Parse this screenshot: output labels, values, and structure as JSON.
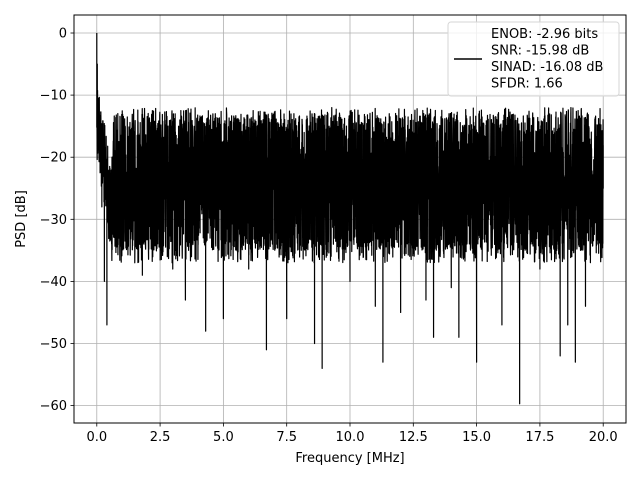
{
  "chart_data": {
    "type": "line",
    "xlabel": "Frequency [MHz]",
    "ylabel": "PSD [dB]",
    "xlim": [
      -0.9,
      20.9
    ],
    "ylim": [
      -62.8,
      2.9
    ],
    "xticks": [
      0.0,
      2.5,
      5.0,
      7.5,
      10.0,
      12.5,
      15.0,
      17.5,
      20.0
    ],
    "xtick_labels": [
      "0.0",
      "2.5",
      "5.0",
      "7.5",
      "10.0",
      "12.5",
      "15.0",
      "17.5",
      "20.0"
    ],
    "yticks": [
      0,
      -10,
      -20,
      -30,
      -40,
      -50,
      -60
    ],
    "ytick_labels": [
      "0",
      "−10",
      "−20",
      "−30",
      "−40",
      "−50",
      "−60"
    ],
    "grid": true,
    "legend_position": "top-right",
    "series": [
      {
        "name": "ENOB: -2.96 bits\nSNR: -15.98 dB\nSINAD: -16.08 dB\nSFDR: 1.66",
        "color": "#000000",
        "noise_floor_db": -24,
        "noise_upper_db": -12,
        "noise_lower_db": -37,
        "x": [
          0.0,
          0.02,
          0.05,
          0.1,
          0.15,
          0.2,
          0.3,
          0.4,
          0.5,
          0.6,
          1.0,
          1.5,
          1.8,
          2.0,
          2.5,
          3.0,
          3.5,
          4.0,
          4.3,
          4.6,
          5.0,
          5.5,
          6.0,
          6.5,
          6.7,
          7.0,
          7.5,
          8.0,
          8.6,
          8.9,
          9.5,
          10.0,
          10.5,
          11.0,
          11.3,
          11.7,
          12.0,
          12.5,
          13.0,
          13.3,
          13.6,
          14.0,
          14.3,
          14.8,
          15.0,
          15.5,
          16.0,
          16.5,
          16.7,
          17.0,
          17.5,
          18.0,
          18.3,
          18.6,
          18.9,
          19.3,
          19.6,
          20.0
        ],
        "y": [
          0,
          -5,
          -12,
          -18,
          -22,
          -28,
          -40,
          -47,
          -30,
          -20,
          -26,
          -22,
          -39,
          -25,
          -25,
          -38,
          -43,
          -24,
          -48,
          -28,
          -46,
          -25,
          -38,
          -28,
          -51,
          -24,
          -46,
          -22,
          -50,
          -54,
          -28,
          -40,
          -22,
          -44,
          -53,
          -27,
          -45,
          -26,
          -43,
          -49,
          -28,
          -41,
          -49,
          -25,
          -53,
          -26,
          -47,
          -25,
          -59.7,
          -26,
          -38,
          -28,
          -52,
          -47,
          -53,
          -44,
          -32,
          -25
        ]
      }
    ]
  }
}
